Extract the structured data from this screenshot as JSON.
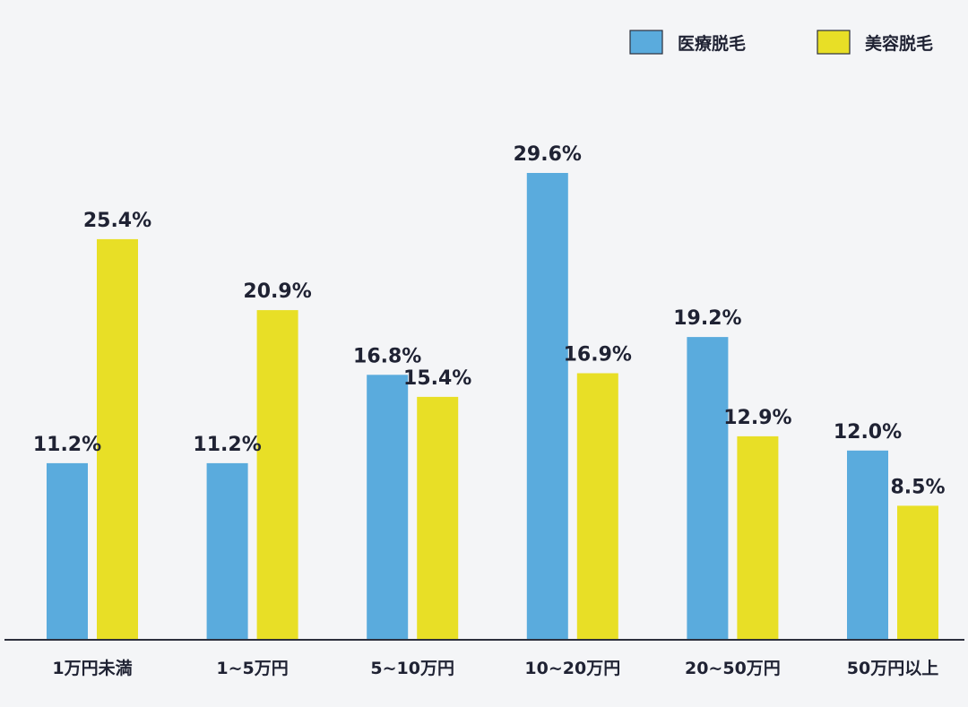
{
  "colors": {
    "background": "#f4f5f7",
    "text": "#1f2233",
    "axis": "#2c2f3c"
  },
  "chart_data": {
    "type": "bar",
    "title": "",
    "xlabel": "",
    "ylabel": "",
    "ylim": [
      0,
      29.6
    ],
    "grid": false,
    "legend_position": "top-right",
    "categories": [
      "1万円未満",
      "1~5万円",
      "5~10万円",
      "10~20万円",
      "20~50万円",
      "50万円以上"
    ],
    "series": [
      {
        "name": "医療脱毛",
        "color": "#5aabdd",
        "values": [
          11.2,
          11.2,
          16.8,
          29.6,
          19.2,
          12.0
        ],
        "labels": [
          "11.2%",
          "11.2%",
          "16.8%",
          "29.6%",
          "19.2%",
          "12.0%"
        ]
      },
      {
        "name": "美容脱毛",
        "color": "#e8df26",
        "values": [
          25.4,
          20.9,
          15.4,
          16.9,
          12.9,
          8.5
        ],
        "labels": [
          "25.4%",
          "20.9%",
          "15.4%",
          "16.9%",
          "12.9%",
          "8.5%"
        ]
      }
    ]
  }
}
